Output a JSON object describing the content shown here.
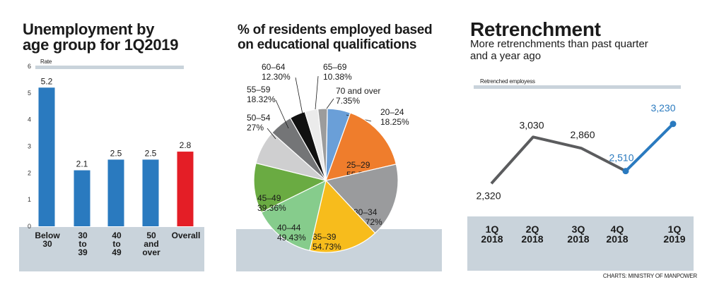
{
  "source": "CHARTS: MINISTRY OF MANPOWER",
  "chart_data": [
    {
      "type": "bar",
      "title_lines": [
        "Unemployment by",
        "age group for 1Q2019"
      ],
      "ylabel": "Rate",
      "ylim": [
        0,
        6
      ],
      "yticks": [
        "0",
        "1",
        "2",
        "3",
        "4",
        "5",
        "6"
      ],
      "categories": [
        [
          "Below",
          "30"
        ],
        [
          "30",
          "to",
          "39"
        ],
        [
          "40",
          "to",
          "49"
        ],
        [
          "50",
          "and",
          "over"
        ],
        [
          "Overall"
        ]
      ],
      "values": [
        5.2,
        2.1,
        2.5,
        2.5,
        2.8
      ],
      "value_labels": [
        "5.2",
        "2.1",
        "2.5",
        "2.5",
        "2.8"
      ],
      "colors": [
        "#2a7abf",
        "#2a7abf",
        "#2a7abf",
        "#2a7abf",
        "#e41e26"
      ]
    },
    {
      "type": "pie",
      "title_lines": [
        "% of residents employed based",
        "on educational qualifications"
      ],
      "slices": [
        {
          "label": "20–24",
          "value": 18.25,
          "color": "#6a9fd8"
        },
        {
          "label": "25–29",
          "value": 55.75,
          "color": "#ef7d2c"
        },
        {
          "label": "30–34",
          "value": 58.72,
          "color": "#9a9b9d"
        },
        {
          "label": "35–39",
          "value": 54.73,
          "color": "#f7bc1c"
        },
        {
          "label": "40–44",
          "value": 49.43,
          "color": "#86cc8c"
        },
        {
          "label": "45–49",
          "value": 39.36,
          "color": "#6aab42"
        },
        {
          "label": "50–54",
          "value": 27,
          "color": "#cfcfd0"
        },
        {
          "label": "55–59",
          "value": 18.32,
          "color": "#747577"
        },
        {
          "label": "60–64",
          "value": 12.3,
          "color": "#111111"
        },
        {
          "label": "65–69",
          "value": 10.38,
          "color": "#ebebeb"
        },
        {
          "label": "70 and over",
          "value": 7.35,
          "color": "#9c9c9c"
        }
      ],
      "value_labels": [
        "18.25%",
        "55.75%",
        "58.72%",
        "54.73%",
        "49.43%",
        "39.36%",
        "27%",
        "18.32%",
        "12.30%",
        "10.38%",
        "7.35%"
      ]
    },
    {
      "type": "line",
      "title": "Retrenchment",
      "subtitle_lines": [
        "More retrenchments than past quarter",
        "and a year ago"
      ],
      "ylabel": "Retrenched employess",
      "categories": [
        [
          "1Q",
          "2018"
        ],
        [
          "2Q",
          "2018"
        ],
        [
          "3Q",
          "2018"
        ],
        [
          "4Q",
          "2018"
        ],
        [
          "1Q",
          "2019"
        ]
      ],
      "values": [
        2320,
        3030,
        2860,
        2510,
        3230
      ],
      "value_labels": [
        "2,320",
        "3,030",
        "2,860",
        "2,510",
        "3,230"
      ],
      "colors": {
        "past": "#5b5c5e",
        "recent": "#2a7abf"
      }
    }
  ]
}
